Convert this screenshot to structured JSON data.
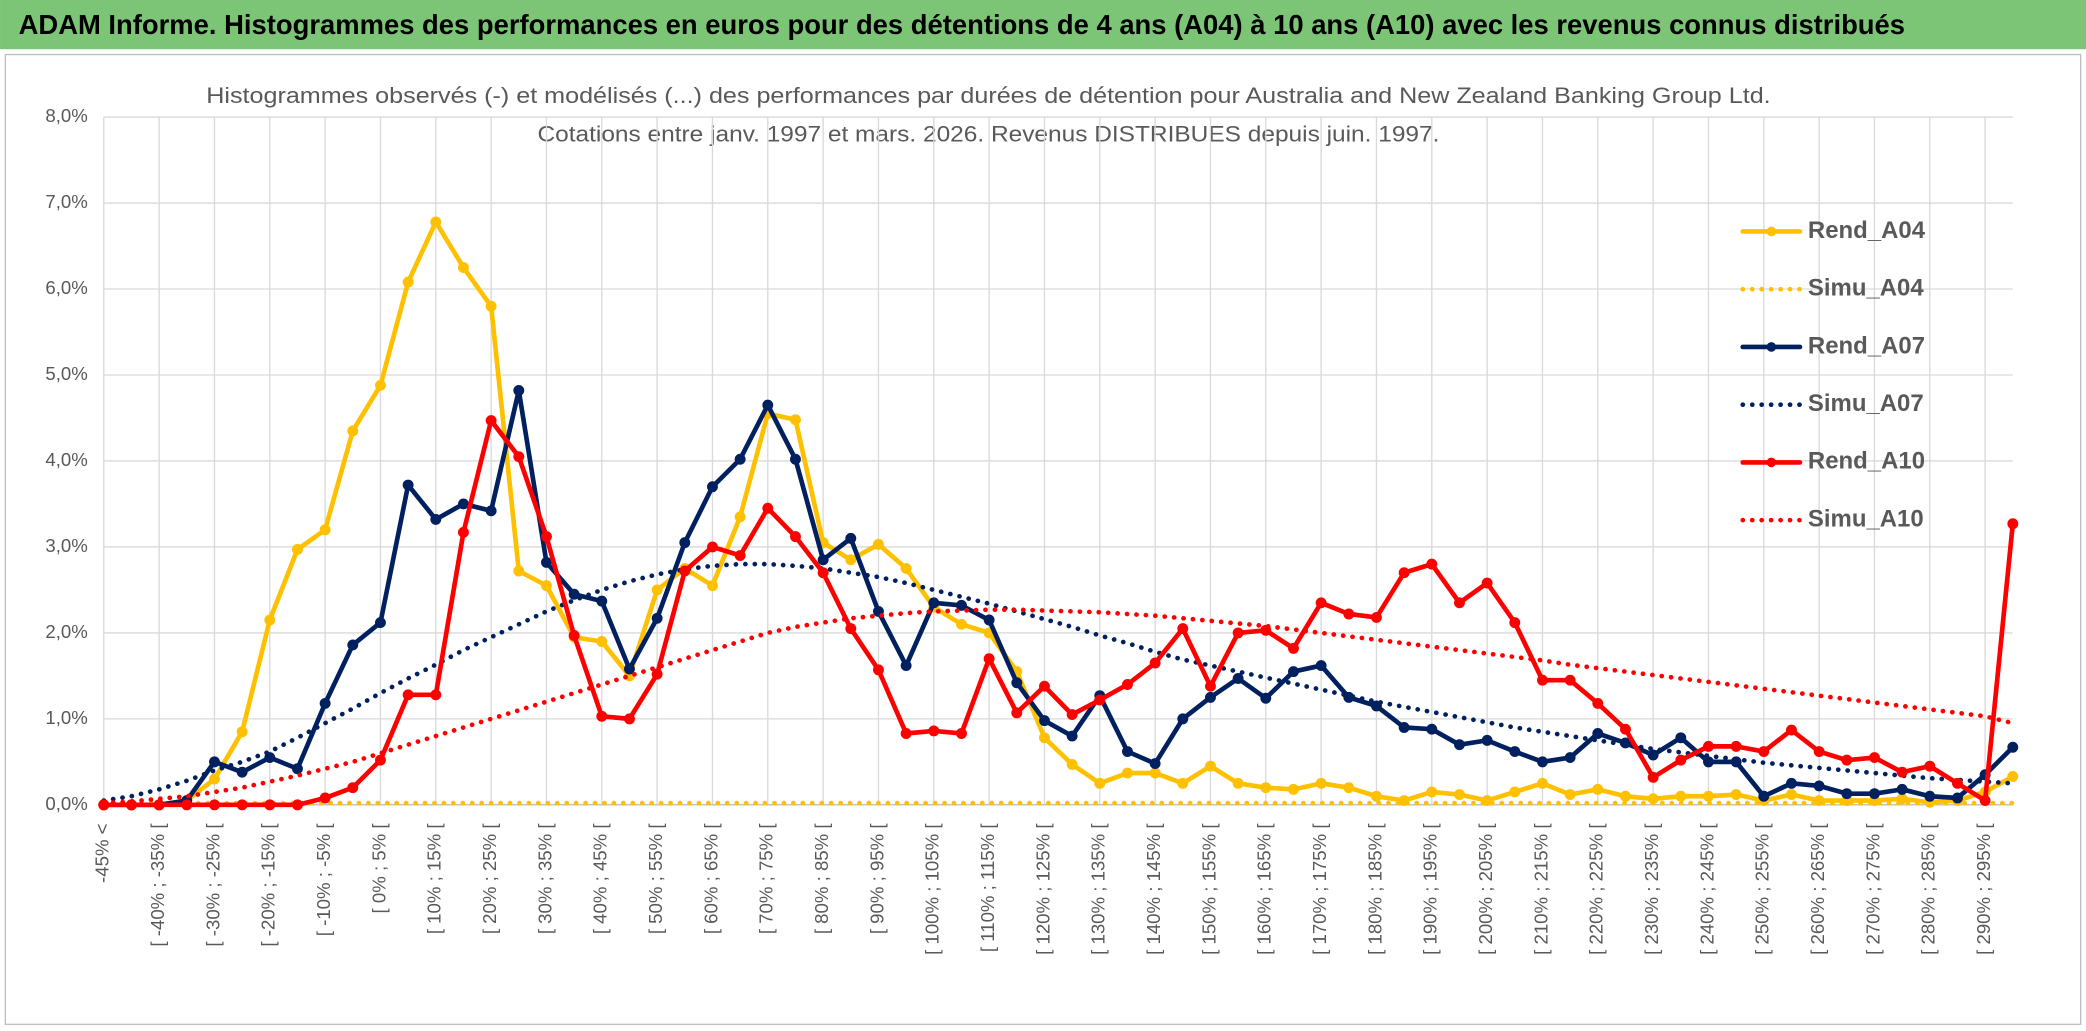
{
  "header": {
    "title": "ADAM Informe. Histogrammes des performances en euros pour des détentions de 4 ans (A04) à 10 ans (A10) avec les revenus connus distribués"
  },
  "chart_data": {
    "type": "line",
    "title": "Histogrammes observés (-) et modélisés (...) des performances par durées de détention pour Australia and New Zealand Banking Group Ltd.",
    "subtitle": "Cotations entre janv. 1997 et mars. 2026. Revenus DISTRIBUES depuis juin. 1997.",
    "categories": [
      "-45% <",
      null,
      "[ -40% ; -35% [",
      null,
      "[ -30% ; -25% [",
      null,
      "[ -20% ; -15% [",
      null,
      "[ -10% ; -5% [",
      null,
      "[ 0% ; 5% [",
      null,
      "[ 10% ; 15% [",
      null,
      "[ 20% ; 25% [",
      null,
      "[ 30% ; 35% [",
      null,
      "[ 40% ; 45% [",
      null,
      "[ 50% ; 55% [",
      null,
      "[ 60% ; 65% [",
      null,
      "[ 70% ; 75% [",
      null,
      "[ 80% ; 85% [",
      null,
      "[ 90% ; 95% [",
      null,
      "[ 100% ; 105% [",
      null,
      "[ 110% ; 115% [",
      null,
      "[ 120% ; 125% [",
      null,
      "[ 130% ; 135% [",
      null,
      "[ 140% ; 145% [",
      null,
      "[ 150% ; 155% [",
      null,
      "[ 160% ; 165% [",
      null,
      "[ 170% ; 175% [",
      null,
      "[ 180% ; 185% [",
      null,
      "[ 190% ; 195% [",
      null,
      "[ 200% ; 205% [",
      null,
      "[ 210% ; 215% [",
      null,
      "[ 220% ; 225% [",
      null,
      "[ 230% ; 235% [",
      null,
      "[ 240% ; 245% [",
      null,
      "[ 250% ; 255% [",
      null,
      "[ 260% ; 265% [",
      null,
      "[ 270% ; 275% [",
      null,
      "[ 280% ; 285% [",
      null,
      "[ 290% ; 295% [",
      null
    ],
    "series": [
      {
        "name": "Rend_A04",
        "color": "#ffc000",
        "style": "solid",
        "markers": true,
        "values": [
          0,
          0,
          0,
          0.05,
          0.3,
          0.85,
          2.15,
          2.97,
          3.2,
          4.35,
          4.88,
          6.08,
          6.78,
          6.25,
          5.8,
          2.72,
          2.55,
          1.95,
          1.9,
          1.5,
          2.5,
          2.75,
          2.55,
          3.35,
          4.55,
          4.48,
          3.05,
          2.85,
          3.03,
          2.75,
          2.3,
          2.1,
          2.0,
          1.55,
          0.78,
          0.47,
          0.25,
          0.37,
          0.37,
          0.25,
          0.45,
          0.25,
          0.2,
          0.18,
          0.25,
          0.2,
          0.1,
          0.05,
          0.15,
          0.12,
          0.05,
          0.15,
          0.25,
          0.12,
          0.18,
          0.1,
          0.07,
          0.1,
          0.1,
          0.12,
          0.05,
          0.12,
          0.05,
          0.05,
          0.05,
          0.07,
          0.03,
          0.05,
          0.15,
          0.33
        ]
      },
      {
        "name": "Simu_A04",
        "color": "#ffc000",
        "style": "dotted",
        "markers": false,
        "values": [
          0.02,
          0.02,
          0.02,
          0.02,
          0.02,
          0.02,
          0.02,
          0.02,
          0.02,
          0.02,
          0.02,
          0.02,
          0.02,
          0.02,
          0.02,
          0.02,
          0.02,
          0.02,
          0.02,
          0.02,
          0.02,
          0.02,
          0.02,
          0.02,
          0.02,
          0.02,
          0.02,
          0.02,
          0.02,
          0.02,
          0.02,
          0.02,
          0.02,
          0.02,
          0.02,
          0.02,
          0.02,
          0.02,
          0.02,
          0.02,
          0.02,
          0.02,
          0.02,
          0.02,
          0.02,
          0.02,
          0.02,
          0.02,
          0.02,
          0.02,
          0.02,
          0.02,
          0.02,
          0.02,
          0.02,
          0.02,
          0.02,
          0.02,
          0.02,
          0.02,
          0.02,
          0.02,
          0.02,
          0.02,
          0.02,
          0.02,
          0.02,
          0.02,
          0.02,
          0.02
        ]
      },
      {
        "name": "Rend_A07",
        "color": "#002060",
        "style": "solid",
        "markers": true,
        "values": [
          0,
          0,
          0,
          0.05,
          0.5,
          0.38,
          0.55,
          0.42,
          1.18,
          1.86,
          2.12,
          3.72,
          3.32,
          3.5,
          3.42,
          4.82,
          2.82,
          2.45,
          2.37,
          1.58,
          2.17,
          3.05,
          3.7,
          4.02,
          4.65,
          4.02,
          2.85,
          3.1,
          2.25,
          1.62,
          2.35,
          2.32,
          2.15,
          1.42,
          0.98,
          0.8,
          1.27,
          0.62,
          0.48,
          1.0,
          1.25,
          1.47,
          1.24,
          1.55,
          1.62,
          1.25,
          1.15,
          0.9,
          0.88,
          0.7,
          0.75,
          0.62,
          0.5,
          0.55,
          0.83,
          0.72,
          0.58,
          0.78,
          0.5,
          0.5,
          0.1,
          0.25,
          0.22,
          0.13,
          0.13,
          0.18,
          0.1,
          0.08,
          0.35,
          0.67
        ]
      },
      {
        "name": "Simu_A07",
        "color": "#002060",
        "style": "dotted",
        "markers": false,
        "values": [
          0.05,
          0.1,
          0.18,
          0.28,
          0.4,
          0.5,
          0.62,
          0.78,
          0.95,
          1.12,
          1.3,
          1.47,
          1.63,
          1.8,
          1.95,
          2.1,
          2.25,
          2.38,
          2.5,
          2.6,
          2.68,
          2.74,
          2.78,
          2.8,
          2.8,
          2.78,
          2.75,
          2.7,
          2.65,
          2.58,
          2.5,
          2.42,
          2.34,
          2.25,
          2.16,
          2.07,
          1.97,
          1.88,
          1.78,
          1.69,
          1.62,
          1.55,
          1.48,
          1.41,
          1.34,
          1.27,
          1.2,
          1.14,
          1.08,
          1.02,
          0.96,
          0.9,
          0.85,
          0.8,
          0.75,
          0.7,
          0.65,
          0.61,
          0.57,
          0.53,
          0.49,
          0.46,
          0.43,
          0.4,
          0.37,
          0.34,
          0.31,
          0.29,
          0.27,
          0.25
        ]
      },
      {
        "name": "Rend_A10",
        "color": "#ff0000",
        "style": "solid",
        "markers": true,
        "values": [
          0,
          0,
          0,
          0,
          0,
          0,
          0,
          0,
          0.08,
          0.2,
          0.52,
          1.28,
          1.28,
          3.17,
          4.47,
          4.05,
          3.12,
          1.97,
          1.03,
          1.0,
          1.52,
          2.72,
          3.0,
          2.9,
          3.45,
          3.12,
          2.7,
          2.05,
          1.57,
          0.83,
          0.86,
          0.83,
          1.7,
          1.07,
          1.38,
          1.05,
          1.22,
          1.4,
          1.65,
          2.05,
          1.38,
          2.0,
          2.03,
          1.82,
          2.35,
          2.22,
          2.18,
          2.7,
          2.8,
          2.35,
          2.58,
          2.12,
          1.45,
          1.45,
          1.18,
          0.88,
          0.32,
          0.52,
          0.68,
          0.68,
          0.62,
          0.87,
          0.62,
          0.52,
          0.55,
          0.38,
          0.45,
          0.25,
          0.05,
          3.27
        ]
      },
      {
        "name": "Simu_A10",
        "color": "#ff0000",
        "style": "dotted",
        "markers": false,
        "values": [
          0.02,
          0.04,
          0.07,
          0.1,
          0.15,
          0.2,
          0.27,
          0.34,
          0.42,
          0.5,
          0.6,
          0.7,
          0.8,
          0.9,
          1.0,
          1.1,
          1.2,
          1.3,
          1.4,
          1.5,
          1.6,
          1.7,
          1.8,
          1.9,
          2.0,
          2.07,
          2.12,
          2.17,
          2.2,
          2.23,
          2.25,
          2.26,
          2.27,
          2.27,
          2.26,
          2.25,
          2.24,
          2.22,
          2.2,
          2.17,
          2.14,
          2.11,
          2.08,
          2.04,
          2.0,
          1.96,
          1.92,
          1.88,
          1.84,
          1.8,
          1.76,
          1.72,
          1.68,
          1.63,
          1.59,
          1.55,
          1.51,
          1.47,
          1.43,
          1.39,
          1.35,
          1.31,
          1.27,
          1.23,
          1.19,
          1.15,
          1.11,
          1.07,
          1.03,
          0.95
        ]
      }
    ],
    "ylim": [
      0,
      8
    ],
    "yticks": [
      {
        "value": 0,
        "label": "0,0%"
      },
      {
        "value": 1,
        "label": "1,0%"
      },
      {
        "value": 2,
        "label": "2,0%"
      },
      {
        "value": 3,
        "label": "3,0%"
      },
      {
        "value": 4,
        "label": "4,0%"
      },
      {
        "value": 5,
        "label": "5,0%"
      },
      {
        "value": 6,
        "label": "6,0%"
      },
      {
        "value": 7,
        "label": "7,0%"
      },
      {
        "value": 8,
        "label": "8,0%"
      }
    ],
    "grid": true,
    "legend": "right"
  }
}
